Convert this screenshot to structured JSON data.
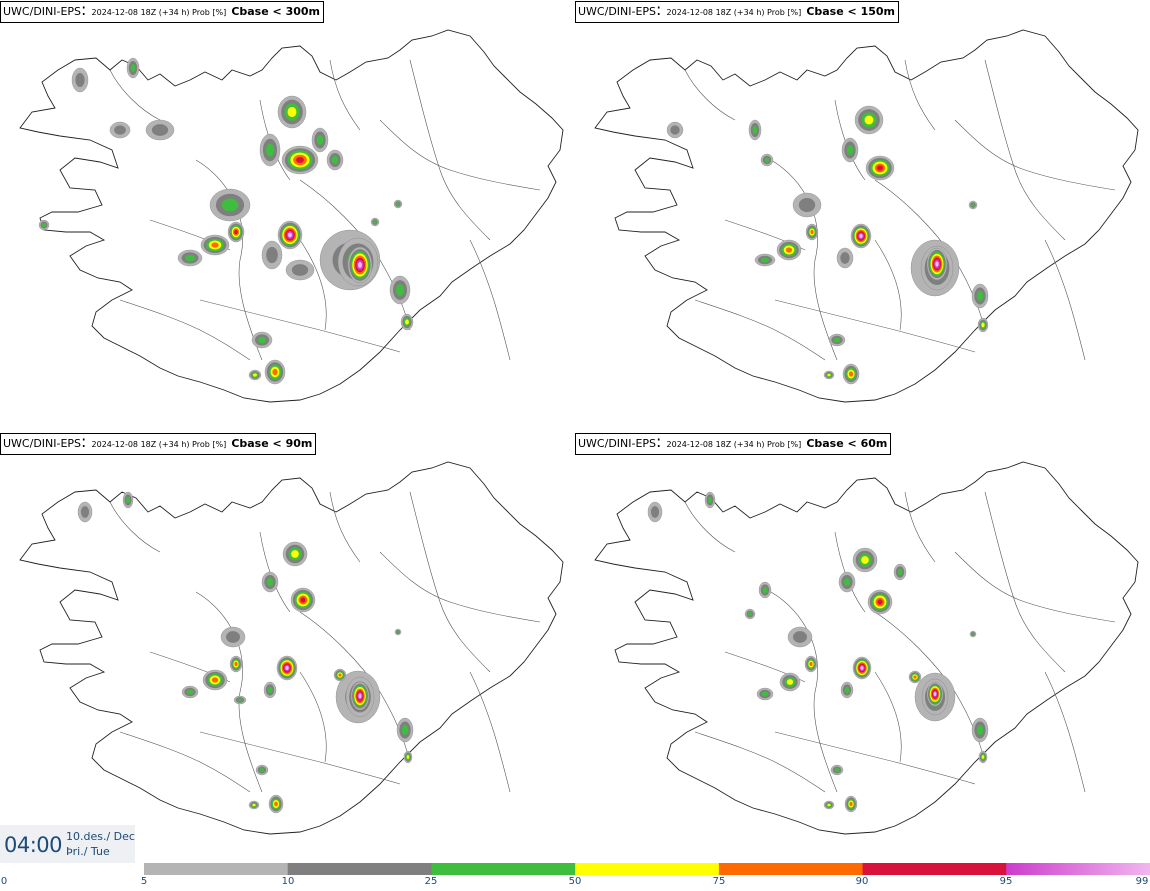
{
  "panels": [
    {
      "model": "UWC/DINI-EPS",
      "run": "2024-12-08 18Z (+34 h) Prob [%]",
      "variable": "Cbase < 300m"
    },
    {
      "model": "UWC/DINI-EPS",
      "run": "2024-12-08 18Z (+34 h) Prob [%]",
      "variable": "Cbase < 150m"
    },
    {
      "model": "UWC/DINI-EPS",
      "run": "2024-12-08 18Z (+34 h) Prob [%]",
      "variable": "Cbase < 90m"
    },
    {
      "model": "UWC/DINI-EPS",
      "run": "2024-12-08 18Z (+34 h) Prob [%]",
      "variable": "Cbase < 60m"
    }
  ],
  "time": {
    "value": "04:00",
    "date": "10.des./ Dec",
    "weekday": "Þri./ Tue"
  },
  "colorscale": {
    "labels": [
      "0",
      "5",
      "10",
      "25",
      "50",
      "75",
      "90",
      "95",
      "99"
    ],
    "bins": [
      {
        "from": "5",
        "to": "10",
        "color": "#b4b4b4"
      },
      {
        "from": "10",
        "to": "25",
        "color": "#7f7f7f"
      },
      {
        "from": "25",
        "to": "50",
        "color": "#3ebd3e"
      },
      {
        "from": "50",
        "to": "75",
        "color": "#ffff00"
      },
      {
        "from": "75",
        "to": "90",
        "color": "#ff6a00"
      },
      {
        "from": "90",
        "to": "95",
        "color": "#d9123c"
      },
      {
        "from": "95",
        "to": "99",
        "color": "#cc3dcc"
      }
    ],
    "top_color": "#f2b6ef"
  }
}
